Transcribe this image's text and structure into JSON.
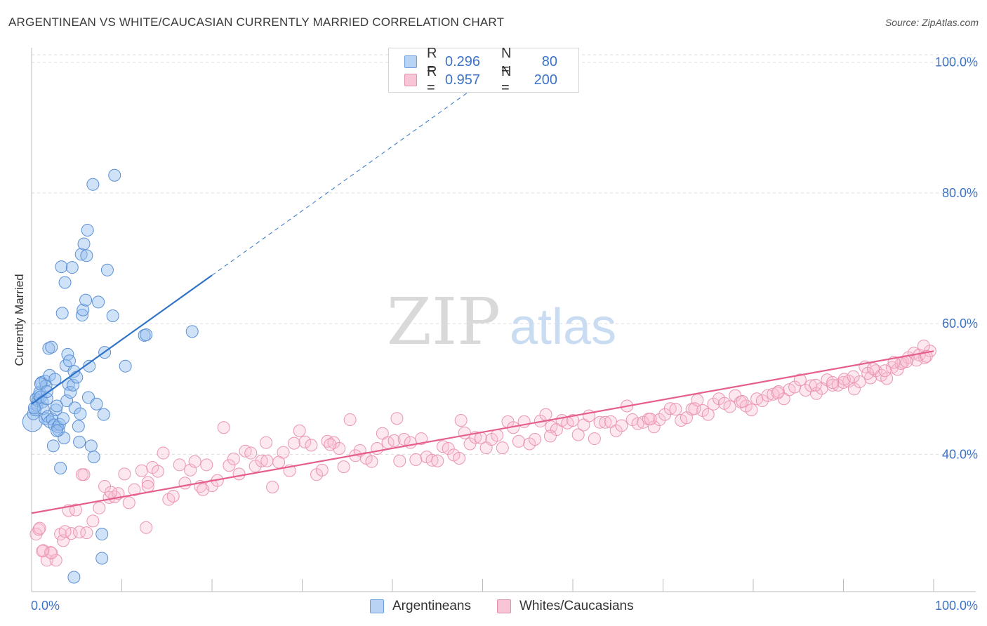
{
  "title": "ARGENTINEAN VS WHITE/CAUCASIAN CURRENTLY MARRIED CORRELATION CHART",
  "source": "Source: ZipAtlas.com",
  "watermark": {
    "zip": "ZIP",
    "atlas": "atlas"
  },
  "legend": {
    "r_label": "R = ",
    "n_label": "N = ",
    "rows": [
      {
        "r": "0.296",
        "n": "80",
        "fill": "#b8d3f3",
        "stroke": "#6d9fdd"
      },
      {
        "r": "0.957",
        "n": "200",
        "fill": "#f7c5d5",
        "stroke": "#e590ad"
      }
    ]
  },
  "colors": {
    "blue_fill": "rgba(150,190,240,0.45)",
    "blue_stroke": "#5b90d4",
    "blue_line": "#2f73c9",
    "pink_fill": "rgba(248,190,210,0.35)",
    "pink_stroke": "#ea95b3",
    "pink_line": "#e55e8c",
    "tick_text": "#3d73c6",
    "grid": "#dddddd"
  },
  "chart_data": {
    "type": "scatter",
    "title": "ARGENTINEAN VS WHITE/CAUCASIAN CURRENTLY MARRIED CORRELATION CHART",
    "xlabel": "",
    "ylabel": "Currently Married",
    "xlim": [
      0,
      100
    ],
    "ylim": [
      19,
      102
    ],
    "x_tick_labels": {
      "min": "0.0%",
      "max": "100.0%"
    },
    "y_ticks": [
      {
        "value": 40,
        "label": "40.0%"
      },
      {
        "value": 60,
        "label": "60.0%"
      },
      {
        "value": 80,
        "label": "80.0%"
      },
      {
        "value": 100,
        "label": "100.0%"
      }
    ],
    "grid": true,
    "legend_position": "bottom-center",
    "series": [
      {
        "name": "Argentineans",
        "regression": {
          "x_start": 0,
          "y_start": 47.7,
          "x_end": 20,
          "y_end": 67.4,
          "dash_to_x": 50,
          "dash_to_y": 97.0
        },
        "points": [
          [
            0.1,
            45.0
          ],
          [
            0.2,
            46.2
          ],
          [
            0.4,
            46.8
          ],
          [
            0.5,
            48.5
          ],
          [
            0.6,
            47.5
          ],
          [
            0.7,
            48.2
          ],
          [
            0.8,
            49.0
          ],
          [
            0.9,
            49.5
          ],
          [
            1.0,
            48.8
          ],
          [
            1.1,
            51.0
          ],
          [
            1.2,
            48.0
          ],
          [
            1.3,
            47.0
          ],
          [
            1.5,
            45.5
          ],
          [
            1.5,
            51.2
          ],
          [
            1.6,
            50.5
          ],
          [
            1.7,
            48.5
          ],
          [
            1.8,
            45.8
          ],
          [
            1.9,
            56.2
          ],
          [
            2.0,
            52.1
          ],
          [
            2.0,
            45.0
          ],
          [
            2.2,
            56.4
          ],
          [
            2.3,
            45.4
          ],
          [
            2.4,
            41.3
          ],
          [
            2.5,
            44.5
          ],
          [
            2.6,
            51.5
          ],
          [
            2.7,
            46.8
          ],
          [
            2.8,
            47.4
          ],
          [
            2.9,
            44.2
          ],
          [
            3.0,
            43.7
          ],
          [
            3.1,
            44.6
          ],
          [
            3.2,
            37.9
          ],
          [
            3.3,
            68.7
          ],
          [
            3.4,
            61.6
          ],
          [
            3.5,
            45.5
          ],
          [
            3.6,
            42.5
          ],
          [
            3.7,
            66.3
          ],
          [
            3.8,
            53.6
          ],
          [
            3.9,
            48.2
          ],
          [
            4.0,
            55.3
          ],
          [
            4.1,
            50.7
          ],
          [
            4.2,
            54.3
          ],
          [
            4.3,
            49.5
          ],
          [
            4.5,
            68.6
          ],
          [
            4.6,
            50.6
          ],
          [
            4.7,
            52.7
          ],
          [
            4.8,
            47.1
          ],
          [
            5.0,
            51.8
          ],
          [
            5.2,
            44.3
          ],
          [
            5.3,
            41.9
          ],
          [
            5.4,
            46.2
          ],
          [
            5.5,
            70.6
          ],
          [
            5.6,
            61.3
          ],
          [
            5.7,
            62.1
          ],
          [
            5.8,
            72.2
          ],
          [
            6.0,
            63.6
          ],
          [
            6.1,
            70.4
          ],
          [
            6.2,
            74.3
          ],
          [
            6.3,
            48.7
          ],
          [
            6.4,
            53.5
          ],
          [
            6.6,
            41.3
          ],
          [
            6.8,
            81.3
          ],
          [
            6.9,
            39.6
          ],
          [
            7.2,
            47.7
          ],
          [
            7.4,
            63.3
          ],
          [
            7.8,
            27.8
          ],
          [
            7.8,
            24.1
          ],
          [
            8.0,
            46.1
          ],
          [
            8.1,
            55.6
          ],
          [
            8.4,
            68.2
          ],
          [
            9.0,
            61.2
          ],
          [
            9.2,
            82.7
          ],
          [
            10.4,
            53.5
          ],
          [
            12.5,
            58.2
          ],
          [
            12.7,
            58.3
          ],
          [
            17.8,
            58.8
          ],
          [
            4.7,
            21.2
          ],
          [
            1.0,
            50.8
          ],
          [
            2.8,
            43.6
          ],
          [
            1.7,
            49.6
          ],
          [
            0.3,
            47.1
          ]
        ]
      },
      {
        "name": "Whites/Caucasians",
        "regression": {
          "x_start": 0,
          "y_start": 31.0,
          "x_end": 100,
          "y_end": 55.8
        },
        "points": [
          [
            0.5,
            27.8
          ],
          [
            0.8,
            28.5
          ],
          [
            1.3,
            25.3
          ],
          [
            1.7,
            23.8
          ],
          [
            2.1,
            25.0
          ],
          [
            2.7,
            23.8
          ],
          [
            3.2,
            27.8
          ],
          [
            3.5,
            26.8
          ],
          [
            4.1,
            31.4
          ],
          [
            4.4,
            27.9
          ],
          [
            4.9,
            31.5
          ],
          [
            5.3,
            28.1
          ],
          [
            5.8,
            36.9
          ],
          [
            6.1,
            28.0
          ],
          [
            6.8,
            29.8
          ],
          [
            7.5,
            31.8
          ],
          [
            8.1,
            35.1
          ],
          [
            8.6,
            33.4
          ],
          [
            9.2,
            33.5
          ],
          [
            9.6,
            34.0
          ],
          [
            10.3,
            37.0
          ],
          [
            10.8,
            32.6
          ],
          [
            11.4,
            34.6
          ],
          [
            12.2,
            37.5
          ],
          [
            12.7,
            28.8
          ],
          [
            12.9,
            35.7
          ],
          [
            13.4,
            38.0
          ],
          [
            14.0,
            37.4
          ],
          [
            14.6,
            40.2
          ],
          [
            15.2,
            33.1
          ],
          [
            15.7,
            33.6
          ],
          [
            16.4,
            38.4
          ],
          [
            17.0,
            35.6
          ],
          [
            17.6,
            37.6
          ],
          [
            18.1,
            38.9
          ],
          [
            18.7,
            35.1
          ],
          [
            19.4,
            38.4
          ],
          [
            20.0,
            35.2
          ],
          [
            20.6,
            36.0
          ],
          [
            21.3,
            44.1
          ],
          [
            21.9,
            38.3
          ],
          [
            22.4,
            39.3
          ],
          [
            23.0,
            37.0
          ],
          [
            23.7,
            40.5
          ],
          [
            24.3,
            40.2
          ],
          [
            24.8,
            38.2
          ],
          [
            25.5,
            39.0
          ],
          [
            26.1,
            39.0
          ],
          [
            26.7,
            35.0
          ],
          [
            27.4,
            38.8
          ],
          [
            27.9,
            40.3
          ],
          [
            28.6,
            37.5
          ],
          [
            29.1,
            41.7
          ],
          [
            29.7,
            43.6
          ],
          [
            30.3,
            41.9
          ],
          [
            31.0,
            41.4
          ],
          [
            31.6,
            36.9
          ],
          [
            32.2,
            37.6
          ],
          [
            32.8,
            42.0
          ],
          [
            33.5,
            41.8
          ],
          [
            34.1,
            40.9
          ],
          [
            34.6,
            38.1
          ],
          [
            35.3,
            45.3
          ],
          [
            35.9,
            39.8
          ],
          [
            36.4,
            40.6
          ],
          [
            37.1,
            39.4
          ],
          [
            37.7,
            38.9
          ],
          [
            38.3,
            40.9
          ],
          [
            38.9,
            43.2
          ],
          [
            39.5,
            41.8
          ],
          [
            40.2,
            42.1
          ],
          [
            40.8,
            39.0
          ],
          [
            41.3,
            42.3
          ],
          [
            42.0,
            41.8
          ],
          [
            42.6,
            39.2
          ],
          [
            43.2,
            42.4
          ],
          [
            43.8,
            39.6
          ],
          [
            44.4,
            39.1
          ],
          [
            45.0,
            39.0
          ],
          [
            45.6,
            41.2
          ],
          [
            46.2,
            40.9
          ],
          [
            46.8,
            39.9
          ],
          [
            47.4,
            39.4
          ],
          [
            48.0,
            43.3
          ],
          [
            48.6,
            41.6
          ],
          [
            49.2,
            42.6
          ],
          [
            49.8,
            42.5
          ],
          [
            50.4,
            41.0
          ],
          [
            51.0,
            42.3
          ],
          [
            51.6,
            42.9
          ],
          [
            52.2,
            41.0
          ],
          [
            52.8,
            45.0
          ],
          [
            53.4,
            44.1
          ],
          [
            54.0,
            42.0
          ],
          [
            54.6,
            45.0
          ],
          [
            55.2,
            41.6
          ],
          [
            55.8,
            42.3
          ],
          [
            56.4,
            45.1
          ],
          [
            57.0,
            46.1
          ],
          [
            57.6,
            44.2
          ],
          [
            58.2,
            43.8
          ],
          [
            58.8,
            45.2
          ],
          [
            59.4,
            44.8
          ],
          [
            60.0,
            45.2
          ],
          [
            60.6,
            43.0
          ],
          [
            61.2,
            44.5
          ],
          [
            61.8,
            45.9
          ],
          [
            62.4,
            42.4
          ],
          [
            63.0,
            44.9
          ],
          [
            63.6,
            44.9
          ],
          [
            64.2,
            45.0
          ],
          [
            64.8,
            43.6
          ],
          [
            65.4,
            44.4
          ],
          [
            66.0,
            47.4
          ],
          [
            66.6,
            45.3
          ],
          [
            67.2,
            44.7
          ],
          [
            67.8,
            44.9
          ],
          [
            68.4,
            45.4
          ],
          [
            69.0,
            44.2
          ],
          [
            69.6,
            45.3
          ],
          [
            70.2,
            46.1
          ],
          [
            70.8,
            47.0
          ],
          [
            71.4,
            46.9
          ],
          [
            72.0,
            45.2
          ],
          [
            72.6,
            45.6
          ],
          [
            73.2,
            46.9
          ],
          [
            73.8,
            48.3
          ],
          [
            74.4,
            46.7
          ],
          [
            75.0,
            46.1
          ],
          [
            75.6,
            47.7
          ],
          [
            76.2,
            48.5
          ],
          [
            76.8,
            47.8
          ],
          [
            77.4,
            47.3
          ],
          [
            78.0,
            49.0
          ],
          [
            78.6,
            48.0
          ],
          [
            79.2,
            47.4
          ],
          [
            79.8,
            46.8
          ],
          [
            80.4,
            48.5
          ],
          [
            81.0,
            48.2
          ],
          [
            81.6,
            49.0
          ],
          [
            82.2,
            49.2
          ],
          [
            82.8,
            49.6
          ],
          [
            83.4,
            48.5
          ],
          [
            84.0,
            49.9
          ],
          [
            84.6,
            50.3
          ],
          [
            85.2,
            51.4
          ],
          [
            85.8,
            49.8
          ],
          [
            86.4,
            50.5
          ],
          [
            87.0,
            49.3
          ],
          [
            87.6,
            50.1
          ],
          [
            88.2,
            51.4
          ],
          [
            88.8,
            50.6
          ],
          [
            89.4,
            50.6
          ],
          [
            90.0,
            51.0
          ],
          [
            90.6,
            51.2
          ],
          [
            91.2,
            50.0
          ],
          [
            91.8,
            51.1
          ],
          [
            92.4,
            53.4
          ],
          [
            93.0,
            51.7
          ],
          [
            93.6,
            52.8
          ],
          [
            94.2,
            52.1
          ],
          [
            94.8,
            51.6
          ],
          [
            95.4,
            53.3
          ],
          [
            96.0,
            53.0
          ],
          [
            96.6,
            54.1
          ],
          [
            97.2,
            54.8
          ],
          [
            97.8,
            55.5
          ],
          [
            98.4,
            55.2
          ],
          [
            99.0,
            54.8
          ],
          [
            99.6,
            55.8
          ],
          [
            68.6,
            45.4
          ],
          [
            57.5,
            42.8
          ],
          [
            47.6,
            45.2
          ],
          [
            40.5,
            45.5
          ],
          [
            33.1,
            41.5
          ],
          [
            26.0,
            41.8
          ],
          [
            19.0,
            34.6
          ],
          [
            12.9,
            35.1
          ],
          [
            8.8,
            34.2
          ],
          [
            5.6,
            36.9
          ],
          [
            3.7,
            28.2
          ],
          [
            2.2,
            24.9
          ],
          [
            1.2,
            25.2
          ],
          [
            0.9,
            28.7
          ],
          [
            73.5,
            47.0
          ],
          [
            78.8,
            48.1
          ],
          [
            82.7,
            49.4
          ],
          [
            86.9,
            50.6
          ],
          [
            90.1,
            51.5
          ],
          [
            92.7,
            52.4
          ],
          [
            94.6,
            52.8
          ],
          [
            96.4,
            53.9
          ],
          [
            98.1,
            54.4
          ],
          [
            98.9,
            56.6
          ],
          [
            97.0,
            54.2
          ],
          [
            95.6,
            54.1
          ],
          [
            93.3,
            53.1
          ],
          [
            91.1,
            51.9
          ],
          [
            88.8,
            51.0
          ],
          [
            99.2,
            55.0
          ]
        ]
      }
    ]
  }
}
